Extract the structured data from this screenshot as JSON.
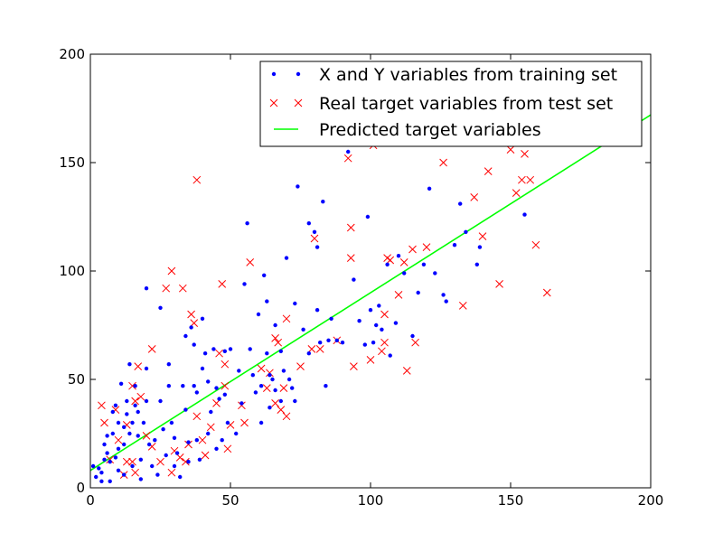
{
  "chart_data": {
    "type": "scatter",
    "title": "",
    "xlabel": "",
    "ylabel": "",
    "xlim": [
      0,
      200
    ],
    "ylim": [
      0,
      200
    ],
    "x_ticks": [
      0,
      50,
      100,
      150,
      200
    ],
    "y_ticks": [
      0,
      50,
      100,
      150,
      200
    ],
    "grid": false,
    "legend_position": "top-right",
    "series": [
      {
        "name": "X and Y variables from training set",
        "kind": "points",
        "marker": "dot",
        "color": "#0000ff",
        "points": [
          [
            1,
            10
          ],
          [
            2,
            5
          ],
          [
            3,
            9
          ],
          [
            4,
            3
          ],
          [
            4,
            7
          ],
          [
            5,
            13
          ],
          [
            5,
            20
          ],
          [
            6,
            24
          ],
          [
            6,
            16
          ],
          [
            7,
            12
          ],
          [
            7,
            3
          ],
          [
            8,
            35
          ],
          [
            8,
            25
          ],
          [
            9,
            38
          ],
          [
            9,
            14
          ],
          [
            10,
            30
          ],
          [
            10,
            18
          ],
          [
            10,
            8
          ],
          [
            11,
            48
          ],
          [
            12,
            28
          ],
          [
            12,
            20
          ],
          [
            12,
            6
          ],
          [
            13,
            40
          ],
          [
            13,
            34
          ],
          [
            14,
            57
          ],
          [
            14,
            25
          ],
          [
            15,
            30
          ],
          [
            15,
            10
          ],
          [
            16,
            47
          ],
          [
            16,
            38
          ],
          [
            17,
            35
          ],
          [
            17,
            24
          ],
          [
            18,
            13
          ],
          [
            18,
            4
          ],
          [
            19,
            30
          ],
          [
            20,
            92
          ],
          [
            20,
            55
          ],
          [
            20,
            40
          ],
          [
            21,
            20
          ],
          [
            22,
            10
          ],
          [
            23,
            22
          ],
          [
            24,
            6
          ],
          [
            25,
            83
          ],
          [
            25,
            40
          ],
          [
            26,
            27
          ],
          [
            27,
            15
          ],
          [
            28,
            57
          ],
          [
            28,
            47
          ],
          [
            29,
            30
          ],
          [
            30,
            23
          ],
          [
            30,
            10
          ],
          [
            31,
            16
          ],
          [
            32,
            5
          ],
          [
            33,
            47
          ],
          [
            34,
            70
          ],
          [
            34,
            36
          ],
          [
            35,
            21
          ],
          [
            35,
            12
          ],
          [
            36,
            74
          ],
          [
            37,
            66
          ],
          [
            37,
            47
          ],
          [
            38,
            44
          ],
          [
            38,
            22
          ],
          [
            39,
            13
          ],
          [
            40,
            78
          ],
          [
            40,
            55
          ],
          [
            41,
            62
          ],
          [
            42,
            49
          ],
          [
            42,
            25
          ],
          [
            43,
            35
          ],
          [
            44,
            64
          ],
          [
            45,
            46
          ],
          [
            45,
            18
          ],
          [
            46,
            41
          ],
          [
            47,
            22
          ],
          [
            48,
            63
          ],
          [
            48,
            43
          ],
          [
            49,
            30
          ],
          [
            50,
            64
          ],
          [
            52,
            25
          ],
          [
            53,
            54
          ],
          [
            54,
            39
          ],
          [
            55,
            94
          ],
          [
            56,
            122
          ],
          [
            57,
            64
          ],
          [
            58,
            52
          ],
          [
            59,
            44
          ],
          [
            60,
            80
          ],
          [
            61,
            47
          ],
          [
            61,
            30
          ],
          [
            62,
            98
          ],
          [
            63,
            86
          ],
          [
            63,
            62
          ],
          [
            64,
            52
          ],
          [
            64,
            37
          ],
          [
            65,
            50
          ],
          [
            66,
            75
          ],
          [
            66,
            45
          ],
          [
            68,
            63
          ],
          [
            68,
            40
          ],
          [
            69,
            54
          ],
          [
            70,
            106
          ],
          [
            71,
            50
          ],
          [
            72,
            46
          ],
          [
            73,
            85
          ],
          [
            73,
            40
          ],
          [
            74,
            139
          ],
          [
            76,
            73
          ],
          [
            78,
            122
          ],
          [
            78,
            62
          ],
          [
            80,
            118
          ],
          [
            81,
            111
          ],
          [
            81,
            82
          ],
          [
            82,
            67
          ],
          [
            83,
            132
          ],
          [
            84,
            47
          ],
          [
            85,
            68
          ],
          [
            86,
            78
          ],
          [
            88,
            68
          ],
          [
            90,
            67
          ],
          [
            92,
            155
          ],
          [
            94,
            96
          ],
          [
            96,
            77
          ],
          [
            98,
            66
          ],
          [
            99,
            125
          ],
          [
            100,
            82
          ],
          [
            101,
            67
          ],
          [
            102,
            75
          ],
          [
            103,
            84
          ],
          [
            104,
            73
          ],
          [
            106,
            103
          ],
          [
            107,
            61
          ],
          [
            109,
            76
          ],
          [
            110,
            107
          ],
          [
            112,
            99
          ],
          [
            115,
            70
          ],
          [
            117,
            90
          ],
          [
            119,
            103
          ],
          [
            121,
            138
          ],
          [
            123,
            99
          ],
          [
            126,
            89
          ],
          [
            127,
            86
          ],
          [
            130,
            112
          ],
          [
            132,
            131
          ],
          [
            134,
            118
          ],
          [
            138,
            103
          ],
          [
            139,
            111
          ],
          [
            155,
            126
          ]
        ]
      },
      {
        "name": "Real target variables from test set",
        "kind": "points",
        "marker": "x",
        "color": "#ff0000",
        "points": [
          [
            4,
            38
          ],
          [
            5,
            30
          ],
          [
            7,
            13
          ],
          [
            9,
            36
          ],
          [
            10,
            22
          ],
          [
            12,
            6
          ],
          [
            13,
            29
          ],
          [
            13,
            12
          ],
          [
            15,
            47
          ],
          [
            15,
            12
          ],
          [
            16,
            40
          ],
          [
            16,
            7
          ],
          [
            17,
            56
          ],
          [
            18,
            42
          ],
          [
            20,
            24
          ],
          [
            22,
            19
          ],
          [
            22,
            64
          ],
          [
            25,
            12
          ],
          [
            27,
            92
          ],
          [
            29,
            100
          ],
          [
            29,
            7
          ],
          [
            30,
            17
          ],
          [
            32,
            14
          ],
          [
            33,
            92
          ],
          [
            34,
            12
          ],
          [
            35,
            20
          ],
          [
            36,
            80
          ],
          [
            37,
            76
          ],
          [
            38,
            142
          ],
          [
            38,
            33
          ],
          [
            40,
            22
          ],
          [
            41,
            15
          ],
          [
            43,
            28
          ],
          [
            45,
            39
          ],
          [
            46,
            62
          ],
          [
            47,
            94
          ],
          [
            48,
            57
          ],
          [
            48,
            47
          ],
          [
            49,
            18
          ],
          [
            50,
            29
          ],
          [
            54,
            38
          ],
          [
            55,
            30
          ],
          [
            57,
            104
          ],
          [
            61,
            55
          ],
          [
            63,
            46
          ],
          [
            64,
            53
          ],
          [
            66,
            69
          ],
          [
            66,
            39
          ],
          [
            67,
            67
          ],
          [
            68,
            36
          ],
          [
            69,
            46
          ],
          [
            70,
            78
          ],
          [
            70,
            33
          ],
          [
            75,
            56
          ],
          [
            79,
            64
          ],
          [
            80,
            115
          ],
          [
            82,
            64
          ],
          [
            88,
            68
          ],
          [
            92,
            152
          ],
          [
            93,
            120
          ],
          [
            93,
            106
          ],
          [
            94,
            56
          ],
          [
            100,
            59
          ],
          [
            101,
            158
          ],
          [
            104,
            63
          ],
          [
            105,
            67
          ],
          [
            105,
            80
          ],
          [
            106,
            106
          ],
          [
            107,
            105
          ],
          [
            110,
            89
          ],
          [
            112,
            104
          ],
          [
            113,
            54
          ],
          [
            115,
            110
          ],
          [
            116,
            67
          ],
          [
            120,
            111
          ],
          [
            126,
            150
          ],
          [
            133,
            84
          ],
          [
            137,
            134
          ],
          [
            140,
            116
          ],
          [
            142,
            146
          ],
          [
            143,
            162
          ],
          [
            146,
            94
          ],
          [
            150,
            156
          ],
          [
            152,
            136
          ],
          [
            154,
            142
          ],
          [
            155,
            154
          ],
          [
            157,
            142
          ],
          [
            159,
            112
          ],
          [
            163,
            90
          ]
        ]
      },
      {
        "name": "Predicted target variables",
        "kind": "line",
        "color": "#00ff00",
        "points": [
          [
            0,
            8
          ],
          [
            200,
            172
          ]
        ]
      }
    ]
  }
}
